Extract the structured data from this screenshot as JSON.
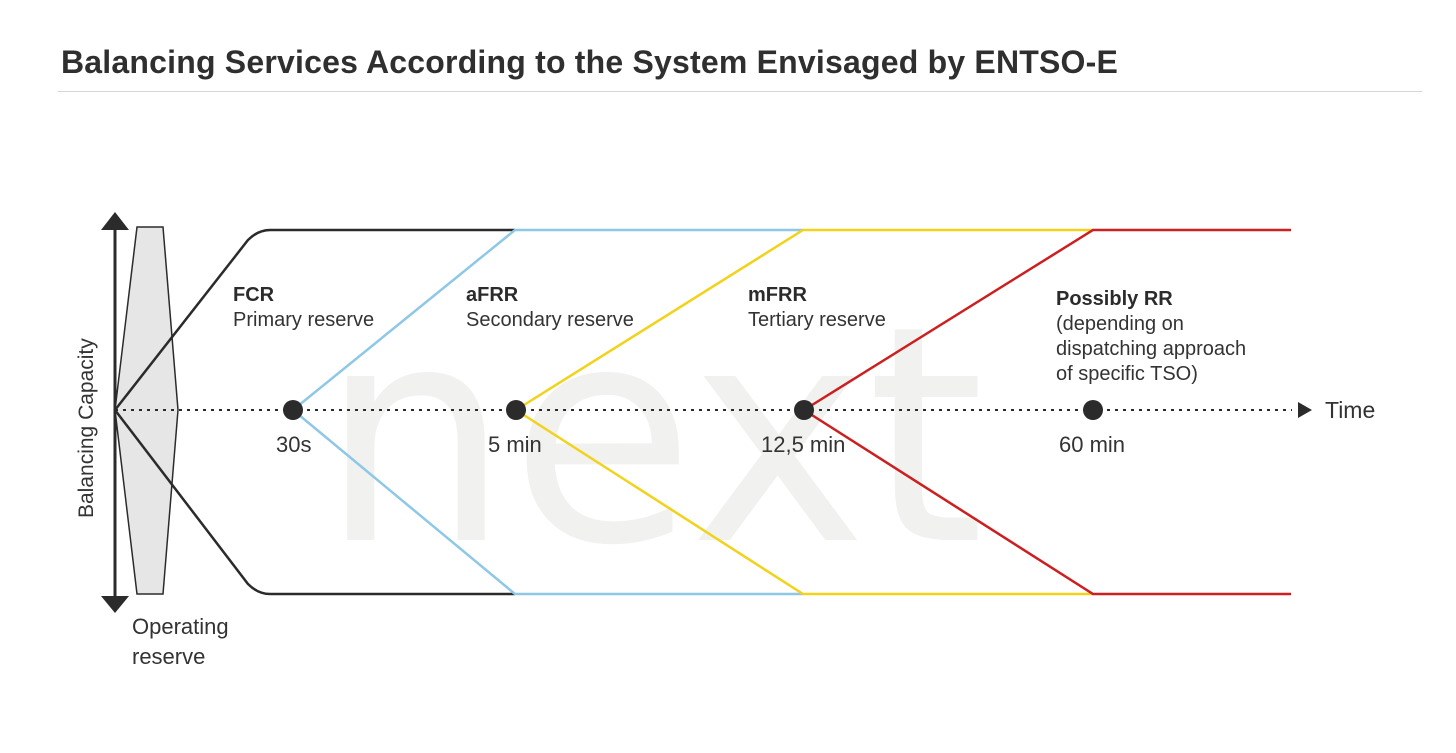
{
  "title": "Balancing Services According to the System Envisaged by ENTSO-E",
  "axis": {
    "y_label": "Balancing Capacity",
    "x_label": "Time"
  },
  "operating_reserve": {
    "line1": "Operating",
    "line2": "reserve"
  },
  "reserves": [
    {
      "name": "FCR",
      "desc": "Primary reserve",
      "color": "#2b2b2b"
    },
    {
      "name": "aFRR",
      "desc": "Secondary reserve",
      "color": "#8ec8e6"
    },
    {
      "name": "mFRR",
      "desc": "Tertiary reserve",
      "color": "#f2d21a"
    },
    {
      "name": "Possibly RR",
      "desc": "(depending on",
      "desc2": "dispatching approach",
      "desc3": "of specific TSO)",
      "color": "#cc1f1f"
    }
  ],
  "time_points": [
    "30s",
    "5 min",
    "12,5 min",
    "60 min"
  ],
  "watermark": "next"
}
